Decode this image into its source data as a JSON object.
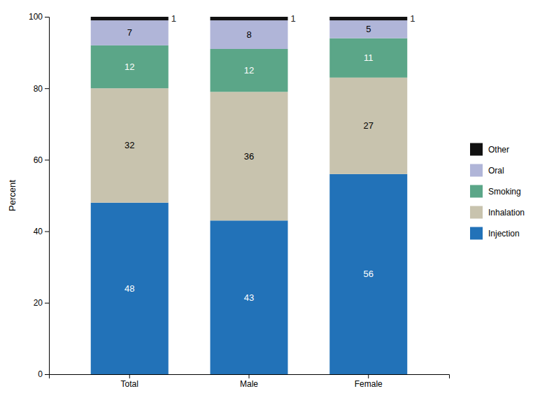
{
  "chart_data": {
    "type": "bar",
    "stacked": true,
    "categories": [
      "Total",
      "Male",
      "Female"
    ],
    "series": [
      {
        "name": "Injection",
        "color": "#2272B8",
        "values": [
          48,
          43,
          56
        ]
      },
      {
        "name": "Inhalation",
        "color": "#C8C3AE",
        "values": [
          32,
          36,
          27
        ]
      },
      {
        "name": "Smoking",
        "color": "#5BA688",
        "values": [
          12,
          12,
          11
        ]
      },
      {
        "name": "Oral",
        "color": "#B0B5D8",
        "values": [
          7,
          8,
          5
        ]
      },
      {
        "name": "Other",
        "color": "#111111",
        "values": [
          1,
          1,
          1
        ]
      }
    ],
    "ylabel": "Percent",
    "ylim": [
      0,
      100
    ],
    "yticks": [
      0,
      20,
      40,
      60,
      80,
      100
    ],
    "grid": false,
    "legend": "right",
    "data_labels": true
  }
}
